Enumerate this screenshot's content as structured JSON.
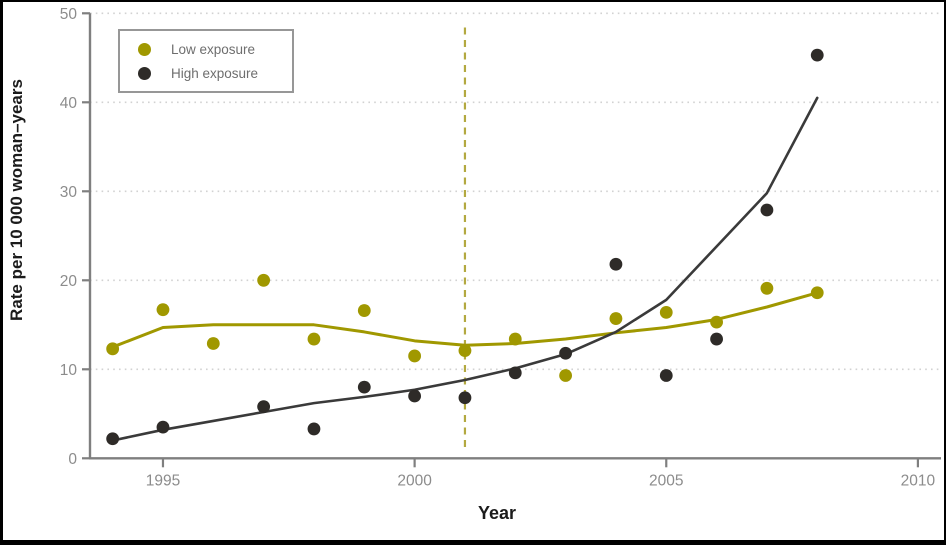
{
  "figure": {
    "background": "#ffffff",
    "frame_color": "#000000"
  },
  "colors": {
    "low_exposure": "#a09800",
    "high_exposure": "#2e2b28",
    "high_trend": "#3a3a3a",
    "axis": "#7f7f7f",
    "tick_label": "#8c8c8c",
    "grid": "#d2d2d2",
    "dashed_reference": "#b3a940",
    "legend_border": "#979797",
    "legend_text": "#6e6e6e",
    "axis_title": "#1b1b1b"
  },
  "chart_data": {
    "type": "scatter",
    "title": "",
    "xlabel": "Year",
    "ylabel": "Rate per 10 000 woman–years",
    "xlim": [
      1993.55,
      2010.3
    ],
    "ylim": [
      0,
      50
    ],
    "x_ticks": [
      1995,
      2000,
      2005,
      2010
    ],
    "y_ticks": [
      0,
      10,
      20,
      30,
      40,
      50
    ],
    "grid": "horizontal dotted lines at each y tick",
    "legend_position": "top-left",
    "reference_line": {
      "axis": "x",
      "value": 2001,
      "style": "dashed"
    },
    "series": [
      {
        "name": "Low exposure",
        "marker": "filled-circle",
        "color_key": "low_exposure",
        "points": [
          [
            1994,
            12.3
          ],
          [
            1995,
            16.7
          ],
          [
            1996,
            12.9
          ],
          [
            1997,
            20.0
          ],
          [
            1998,
            13.4
          ],
          [
            1999,
            16.6
          ],
          [
            2000,
            11.5
          ],
          [
            2001,
            12.1
          ],
          [
            2002,
            13.4
          ],
          [
            2003,
            9.3
          ],
          [
            2004,
            15.7
          ],
          [
            2005,
            16.4
          ],
          [
            2006,
            15.3
          ],
          [
            2007,
            19.1
          ],
          [
            2008,
            18.6
          ]
        ],
        "trend": [
          [
            1994,
            12.5
          ],
          [
            1995,
            14.7
          ],
          [
            1996,
            15.0
          ],
          [
            1997,
            15.0
          ],
          [
            1998,
            15.0
          ],
          [
            1999,
            14.2
          ],
          [
            2000,
            13.2
          ],
          [
            2001,
            12.7
          ],
          [
            2002,
            12.9
          ],
          [
            2003,
            13.4
          ],
          [
            2004,
            14.1
          ],
          [
            2005,
            14.7
          ],
          [
            2006,
            15.6
          ],
          [
            2007,
            17.0
          ],
          [
            2008,
            18.6
          ]
        ]
      },
      {
        "name": "High exposure",
        "marker": "filled-circle",
        "color_key": "high_exposure",
        "points": [
          [
            1994,
            2.2
          ],
          [
            1995,
            3.5
          ],
          [
            1997,
            5.8
          ],
          [
            1998,
            3.3
          ],
          [
            1999,
            8.0
          ],
          [
            2000,
            7.0
          ],
          [
            2001,
            6.8
          ],
          [
            2002,
            9.6
          ],
          [
            2003,
            11.8
          ],
          [
            2004,
            21.8
          ],
          [
            2005,
            9.3
          ],
          [
            2006,
            13.4
          ],
          [
            2007,
            27.9
          ],
          [
            2008,
            45.3
          ]
        ],
        "trend": [
          [
            1994,
            2.0
          ],
          [
            1995,
            3.2
          ],
          [
            1996,
            4.2
          ],
          [
            1997,
            5.2
          ],
          [
            1998,
            6.2
          ],
          [
            1999,
            6.9
          ],
          [
            2000,
            7.7
          ],
          [
            2001,
            8.8
          ],
          [
            2002,
            10.1
          ],
          [
            2003,
            11.7
          ],
          [
            2004,
            14.2
          ],
          [
            2005,
            17.8
          ],
          [
            2006,
            23.8
          ],
          [
            2007,
            29.8
          ],
          [
            2008,
            40.5
          ]
        ]
      }
    ]
  }
}
